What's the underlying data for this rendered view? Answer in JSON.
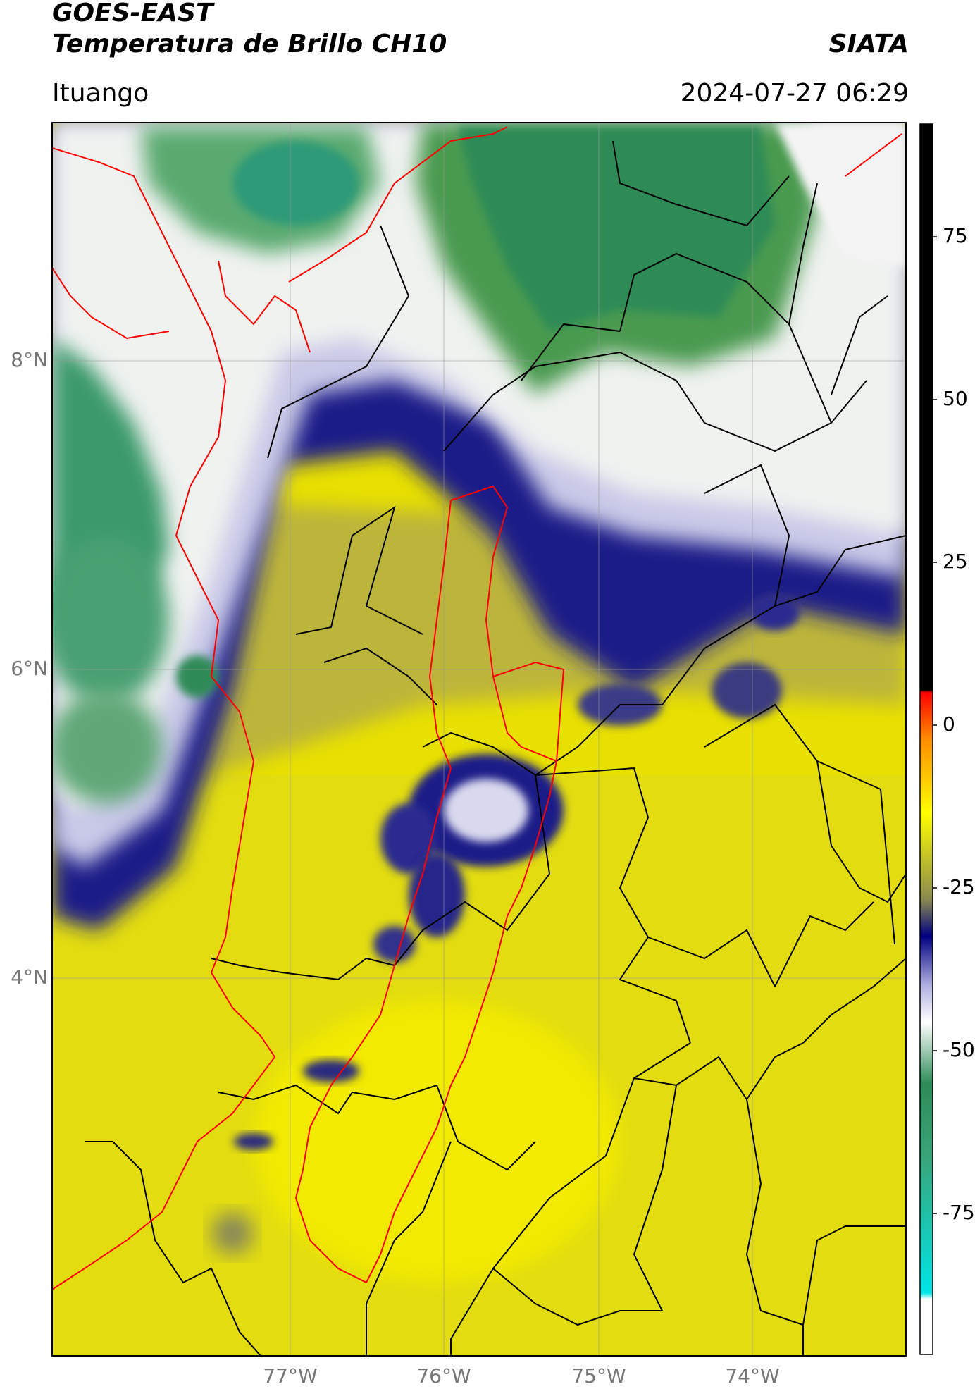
{
  "header": {
    "satellite": "GOES-EAST",
    "product": "Temperatura de Brillo CH10",
    "agency": "SIATA",
    "region": "Ituango",
    "timestamp": "2024-07-27 06:29"
  },
  "map": {
    "lat_labels": [
      "8°N",
      "6°N",
      "4°N"
    ],
    "lon_labels": [
      "77°W",
      "76°W",
      "75°W",
      "74°W"
    ]
  },
  "colorbar": {
    "ticks": [
      "75",
      "50",
      "25",
      "0",
      "-25",
      "-50",
      "-75"
    ],
    "colors": {
      "top": "#000000",
      "warm": "#ff0000",
      "orange": "#ff8c00",
      "yellow": "#ffff00",
      "olive": "#8a8a50",
      "blue": "#000080",
      "lavender": "#b0b0e0",
      "white": "#ffffff",
      "green": "#2e8b57",
      "cyan": "#00e5e5"
    }
  }
}
